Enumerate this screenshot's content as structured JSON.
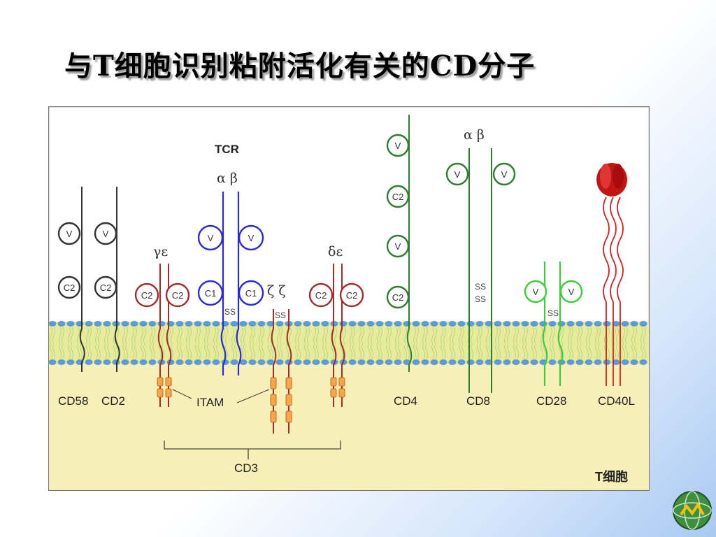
{
  "title": "与T细胞识别粘附活化有关的CD分子",
  "diagram": {
    "tcr_label": "TCR",
    "tcr_chains": "α β",
    "cd3_gamma_epsilon": "γε",
    "cd3_delta_epsilon": "δε",
    "zeta_zeta": "ζ ζ",
    "cd8_chains": "α β",
    "domains": {
      "v": "V",
      "c1": "C1",
      "c2": "C2",
      "ss": "SS"
    },
    "molecules": [
      "CD58",
      "CD2",
      "ITAM",
      "CD4",
      "CD8",
      "CD28",
      "CD40L"
    ],
    "cd3_label": "CD3",
    "cell_label": "T细胞"
  },
  "colors": {
    "membrane": "#e8ec9a",
    "cytoplasm": "#f7efb8",
    "lipid_head": "#5b9bd8",
    "cd2_cd58": "#333333",
    "cd3": "#a52a2a",
    "tcr": "#2a2ad6",
    "cd4_cd8": "#2e7d2e",
    "cd28": "#3ccd3c",
    "cd40l": "#d21f1f",
    "itam": "#f08a2a"
  }
}
